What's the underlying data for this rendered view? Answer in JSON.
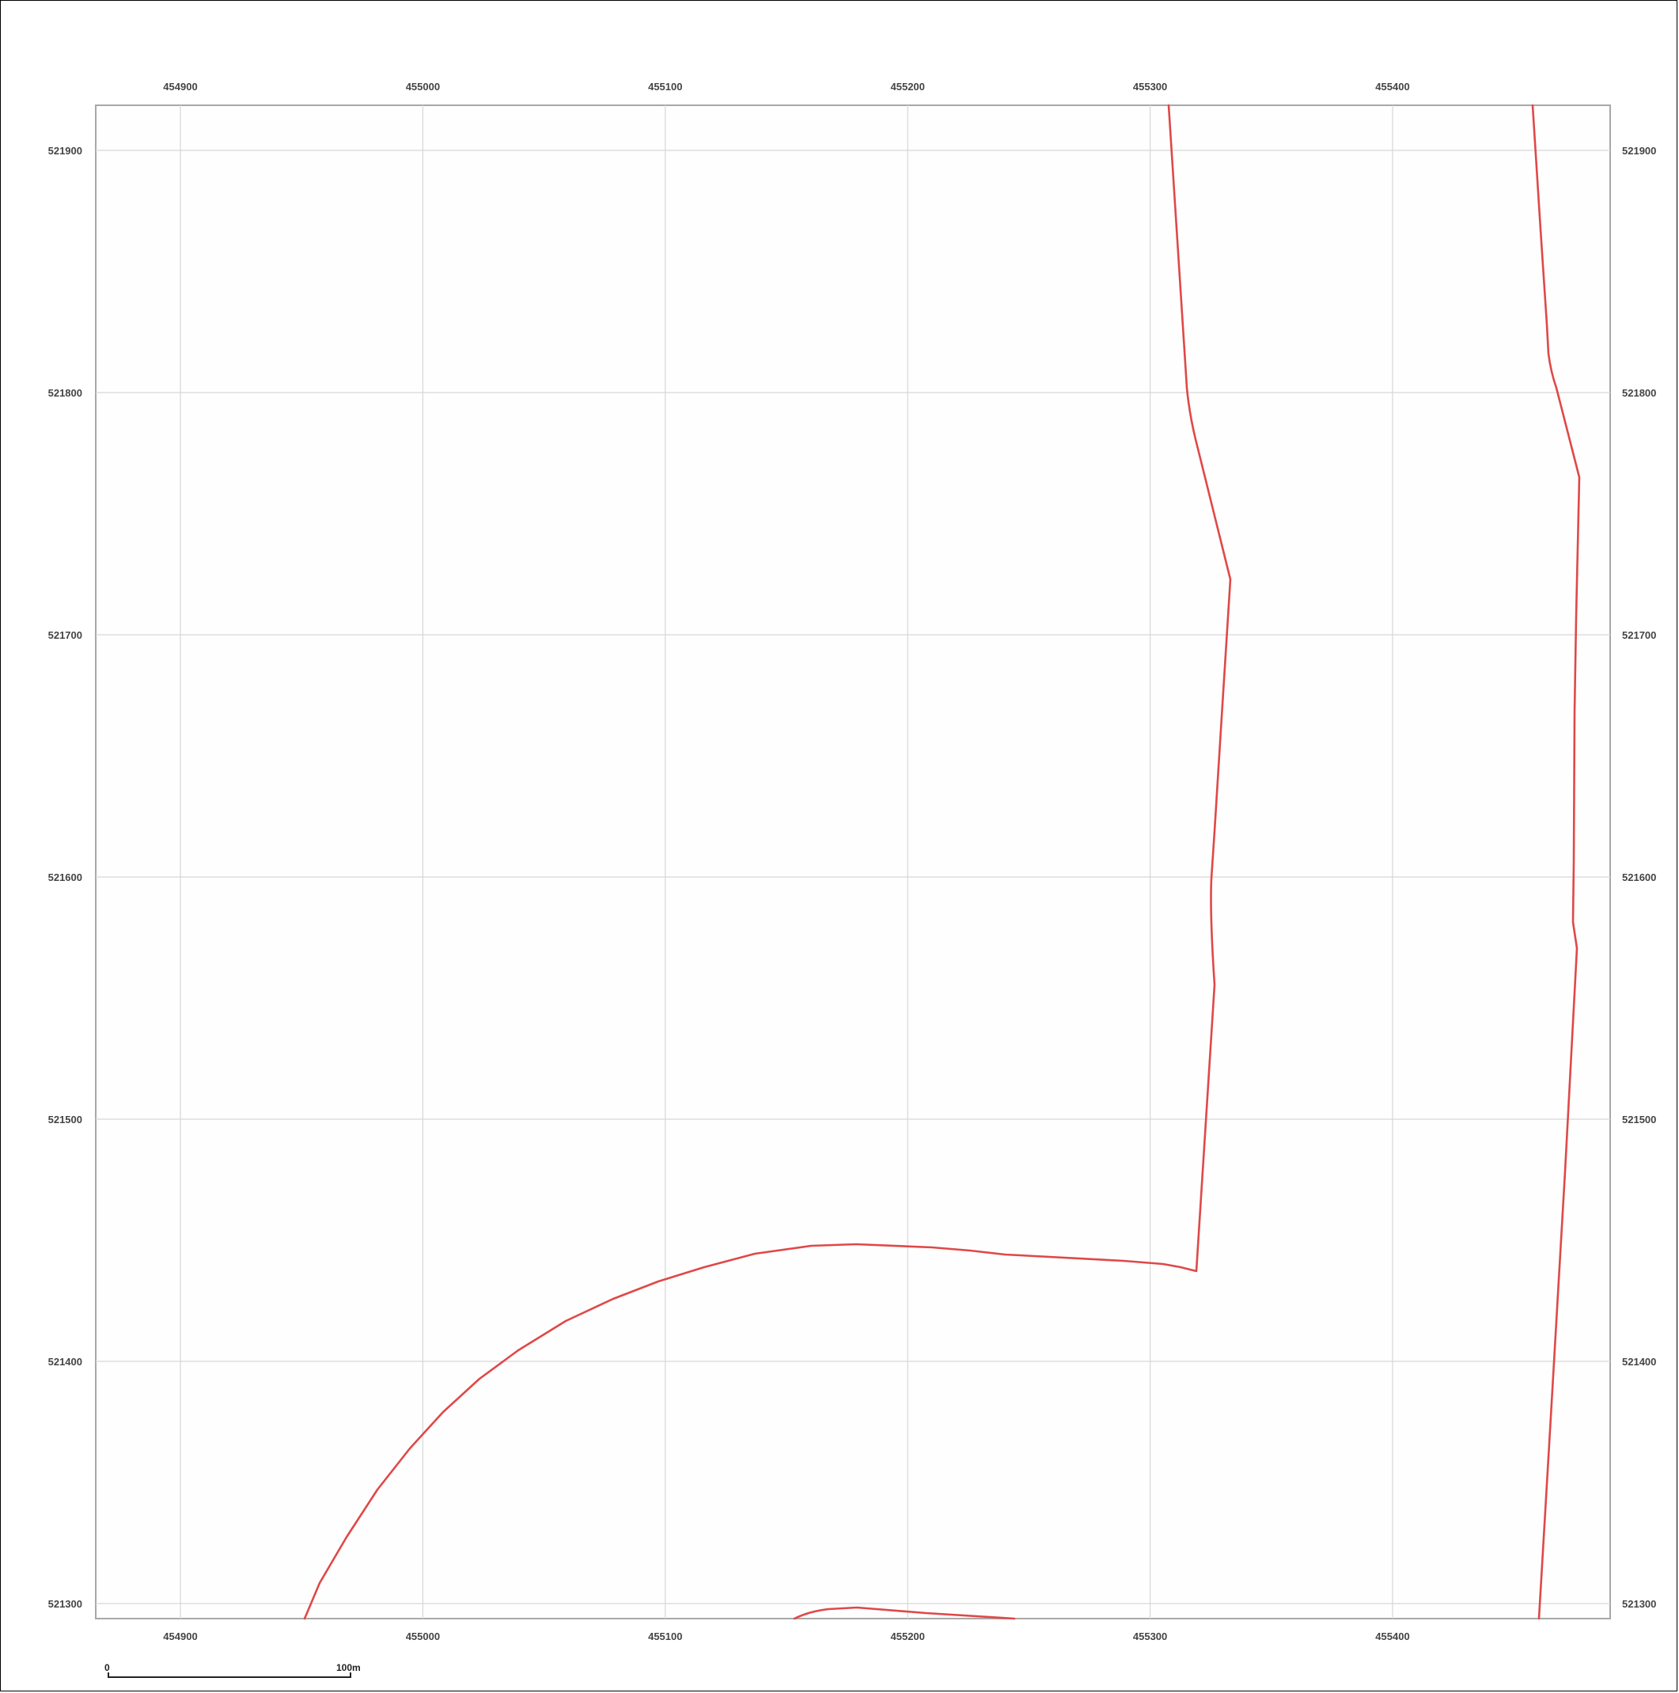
{
  "map": {
    "x_ticks": [
      "454900",
      "455000",
      "455100",
      "455200",
      "455300",
      "455400"
    ],
    "y_ticks": [
      "521900",
      "521800",
      "521700",
      "521600",
      "521500",
      "521400",
      "521300"
    ],
    "boundary_color": "#e04848",
    "grid": true
  },
  "scale_bar": {
    "start_label": "0",
    "end_label": "100m"
  }
}
